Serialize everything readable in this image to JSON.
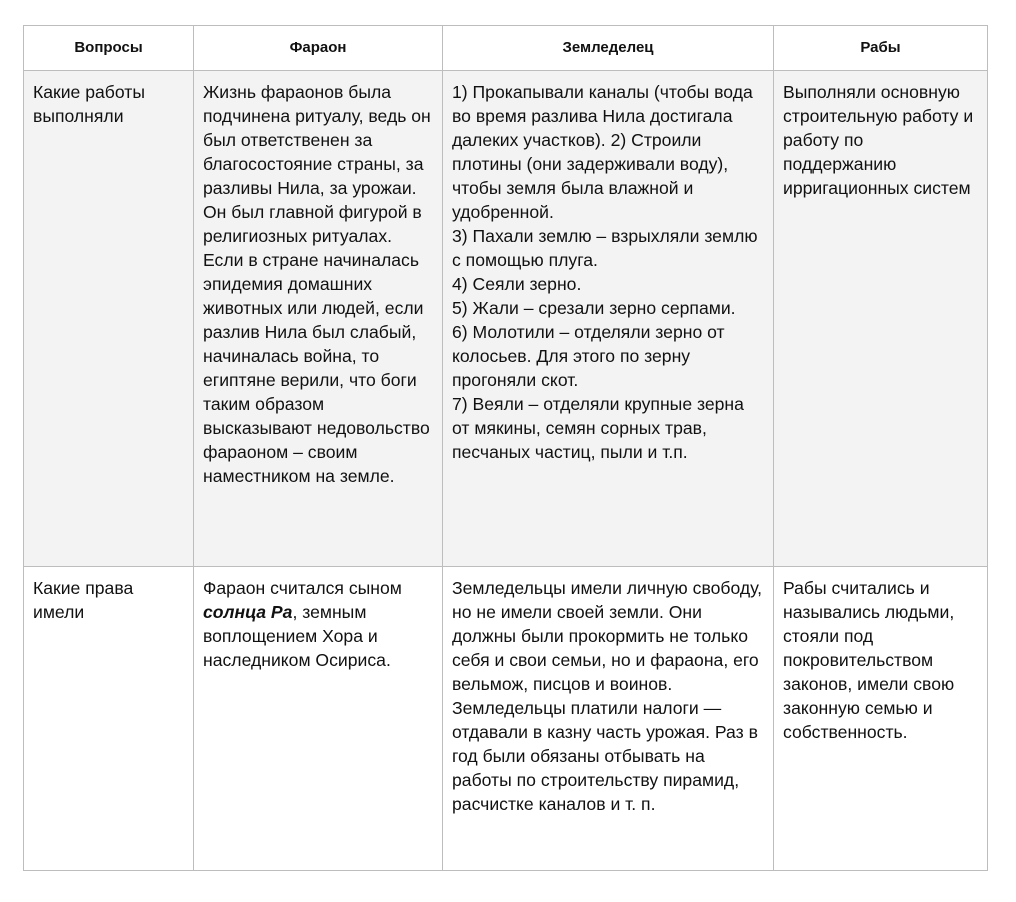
{
  "headers": [
    "Вопросы",
    "Фараон",
    "Земледелец",
    "Рабы"
  ],
  "rows": [
    {
      "question": "Какие работы выполняли",
      "pharaoh": "Жизнь фараонов была подчинена ритуалу, ведь он был ответственен за благосостояние страны, за разливы Нила, за урожаи. Он был главной фигурой в религиозных ритуалах. Если в стране начиналась эпидемия домашних животных или людей, если разлив Нила был слабый, начиналась война, то египтяне верили, что боги таким образом высказывают недовольство фараоном – своим наместником на земле.",
      "farmer": [
        "1) Прокапывали каналы (чтобы вода во время разлива Нила достигала далеких участков). 2) Строили плотины (они задерживали воду), чтобы земля была влажной и удобренной.",
        "3) Пахали землю – взрыхляли землю с помощью плуга.",
        "4) Сеяли зерно.",
        "5) Жали – срезали зерно серпами.",
        "6) Молотили – отделяли зерно от колосьев. Для этого по зерну прогоняли скот.",
        "7) Веяли – отделяли крупные зерна от мякины, семян сорных трав, песчаных частиц, пыли и т.п."
      ],
      "slaves": "Выполняли основную строительную работу и работу по поддержанию ирригационных систем"
    },
    {
      "question": "Какие права имели",
      "pharaoh": {
        "before": "Фараон считался сыном ",
        "bold": "солнца Ра",
        "after": ", земным воплощением Хора и наследником Осириса."
      },
      "farmer": "Земледельцы имели личную свободу, но не имели своей земли. Они должны были прокормить не только себя и свои семьи, но и фараона, его вельмож, писцов и воинов. Земледельцы платили налоги — отдавали в казну часть урожая. Раз в год были обязаны отбывать на работы по строительству пирамид, расчистке каналов и т. п.",
      "slaves": "Рабы считались и назывались людьми, стояли под покровительством законов, имели свою законную семью и собственность."
    }
  ]
}
